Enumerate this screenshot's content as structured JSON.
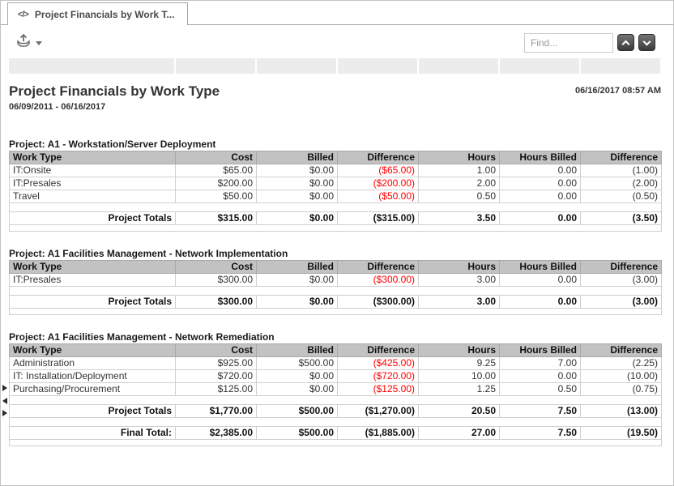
{
  "tab": {
    "icon_glyph": "</>",
    "title": "Project Financials by Work T..."
  },
  "toolbar": {
    "find_placeholder": "Find..."
  },
  "report": {
    "title": "Project Financials by Work Type",
    "date_range": "06/09/2011 - 06/16/2017",
    "generated_at": "06/16/2017 08:57 AM",
    "columns": [
      "Work Type",
      "Cost",
      "Billed",
      "Difference",
      "Hours",
      "Hours Billed",
      "Difference"
    ],
    "sections": [
      {
        "project": "Project: A1 - Workstation/Server Deployment",
        "rows": [
          [
            "IT:Onsite",
            "$65.00",
            "$0.00",
            "($65.00)",
            "1.00",
            "0.00",
            "(1.00)"
          ],
          [
            "IT:Presales",
            "$200.00",
            "$0.00",
            "($200.00)",
            "2.00",
            "0.00",
            "(2.00)"
          ],
          [
            "Travel",
            "$50.00",
            "$0.00",
            "($50.00)",
            "0.50",
            "0.00",
            "(0.50)"
          ]
        ],
        "totals": [
          "Project Totals",
          "$315.00",
          "$0.00",
          "($315.00)",
          "3.50",
          "0.00",
          "(3.50)"
        ]
      },
      {
        "project": "Project: A1 Facilities Management - Network Implementation",
        "rows": [
          [
            "IT:Presales",
            "$300.00",
            "$0.00",
            "($300.00)",
            "3.00",
            "0.00",
            "(3.00)"
          ]
        ],
        "totals": [
          "Project Totals",
          "$300.00",
          "$0.00",
          "($300.00)",
          "3.00",
          "0.00",
          "(3.00)"
        ]
      },
      {
        "project": "Project: A1 Facilities Management - Network Remediation",
        "rows": [
          [
            "Administration",
            "$925.00",
            "$500.00",
            "($425.00)",
            "9.25",
            "7.00",
            "(2.25)"
          ],
          [
            "IT: Installation/Deployment",
            "$720.00",
            "$0.00",
            "($720.00)",
            "10.00",
            "0.00",
            "(10.00)"
          ],
          [
            "Purchasing/Procurement",
            "$125.00",
            "$0.00",
            "($125.00)",
            "1.25",
            "0.50",
            "(0.75)"
          ]
        ],
        "totals": [
          "Project Totals",
          "$1,770.00",
          "$500.00",
          "($1,270.00)",
          "20.50",
          "7.50",
          "(13.00)"
        ],
        "final_totals": [
          "Final Total:",
          "$2,385.00",
          "$500.00",
          "($1,885.00)",
          "27.00",
          "7.50",
          "(19.50)"
        ]
      }
    ]
  },
  "icons": {
    "tab": "code-icon",
    "export": "export-tray-up-arrow",
    "export_caret": "caret-down",
    "find_prev": "chevron-up",
    "find_next": "chevron-down",
    "row_markers": [
      "triangle-right",
      "triangle-left",
      "triangle-right"
    ]
  },
  "colors": {
    "negative": "#ff0000",
    "header_bg": "#c2c2c2",
    "strip_bg": "#ececec",
    "border": "#cfcfcf"
  }
}
